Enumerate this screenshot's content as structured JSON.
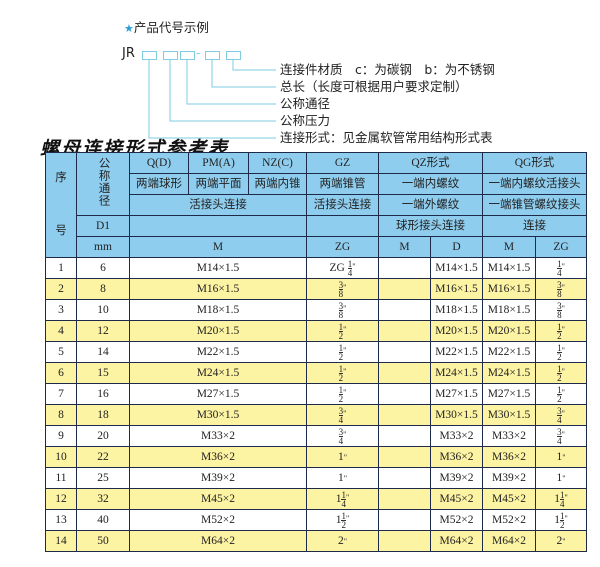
{
  "example": {
    "caption": "产品代号示例",
    "code_prefix": "JR",
    "dash": "-",
    "labels": [
      "连接件材质　c：为碳钢　b：为不锈钢",
      "总长（长度可根据用户要求定制）",
      "公称通径",
      "公称压力",
      "连接形式：见金属软管常用结构形式表"
    ]
  },
  "title": "螺母连接形式参考表",
  "table": {
    "seq_top": "序",
    "seq_bottom": "号",
    "dn_label": "公称通径",
    "row1": [
      "Q(D)",
      "PM(A)",
      "NZ(C)",
      "GZ",
      "QZ形式",
      "QG形式"
    ],
    "row2": [
      "两端球形",
      "两端平面",
      "两端内锥",
      "两端锥管",
      "一端内螺纹",
      "一端内螺纹活接头"
    ],
    "row3": [
      "活接头连接",
      "活接头连接",
      "一端外螺纹",
      "一端锥管螺纹接头"
    ],
    "row4": [
      "D1",
      "",
      "",
      "球形接头连接",
      "连接"
    ],
    "row5": [
      "mm",
      "M",
      "ZG",
      "M",
      "D",
      "M",
      "ZG"
    ],
    "rows": [
      {
        "no": "1",
        "d1": "6",
        "m": "M14×1.5",
        "zg": {
          "pre": "ZG ",
          "whole": "",
          "num": "1",
          "den": "4"
        },
        "qz_m": "",
        "qz_d": "M14×1.5",
        "qg_m": "M14×1.5",
        "qg_zg": {
          "whole": "",
          "num": "1",
          "den": "4"
        }
      },
      {
        "no": "2",
        "d1": "8",
        "m": "M16×1.5",
        "zg": {
          "whole": "",
          "num": "3",
          "den": "8"
        },
        "qz_m": "",
        "qz_d": "M16×1.5",
        "qg_m": "M16×1.5",
        "qg_zg": {
          "whole": "",
          "num": "3",
          "den": "8"
        }
      },
      {
        "no": "3",
        "d1": "10",
        "m": "M18×1.5",
        "zg": {
          "whole": "",
          "num": "3",
          "den": "8"
        },
        "qz_m": "",
        "qz_d": "M18×1.5",
        "qg_m": "M18×1.5",
        "qg_zg": {
          "whole": "",
          "num": "3",
          "den": "8"
        }
      },
      {
        "no": "4",
        "d1": "12",
        "m": "M20×1.5",
        "zg": {
          "whole": "",
          "num": "1",
          "den": "2"
        },
        "qz_m": "",
        "qz_d": "M20×1.5",
        "qg_m": "M20×1.5",
        "qg_zg": {
          "whole": "",
          "num": "1",
          "den": "2"
        }
      },
      {
        "no": "5",
        "d1": "14",
        "m": "M22×1.5",
        "zg": {
          "whole": "",
          "num": "1",
          "den": "2"
        },
        "qz_m": "",
        "qz_d": "M22×1.5",
        "qg_m": "M22×1.5",
        "qg_zg": {
          "whole": "",
          "num": "1",
          "den": "2"
        }
      },
      {
        "no": "6",
        "d1": "15",
        "m": "M24×1.5",
        "zg": {
          "whole": "",
          "num": "1",
          "den": "2"
        },
        "qz_m": "",
        "qz_d": "M24×1.5",
        "qg_m": "M24×1.5",
        "qg_zg": {
          "whole": "",
          "num": "1",
          "den": "2"
        }
      },
      {
        "no": "7",
        "d1": "16",
        "m": "M27×1.5",
        "zg": {
          "whole": "",
          "num": "1",
          "den": "2"
        },
        "qz_m": "",
        "qz_d": "M27×1.5",
        "qg_m": "M27×1.5",
        "qg_zg": {
          "whole": "",
          "num": "1",
          "den": "2"
        }
      },
      {
        "no": "8",
        "d1": "18",
        "m": "M30×1.5",
        "zg": {
          "whole": "",
          "num": "3",
          "den": "4"
        },
        "qz_m": "",
        "qz_d": "M30×1.5",
        "qg_m": "M30×1.5",
        "qg_zg": {
          "whole": "",
          "num": "3",
          "den": "4"
        }
      },
      {
        "no": "9",
        "d1": "20",
        "m": "M33×2",
        "zg": {
          "whole": "",
          "num": "3",
          "den": "4"
        },
        "qz_m": "",
        "qz_d": "M33×2",
        "qg_m": "M33×2",
        "qg_zg": {
          "whole": "",
          "num": "3",
          "den": "4"
        }
      },
      {
        "no": "10",
        "d1": "22",
        "m": "M36×2",
        "zg": {
          "whole": "1",
          "num": "",
          "den": ""
        },
        "qz_m": "",
        "qz_d": "M36×2",
        "qg_m": "M36×2",
        "qg_zg": {
          "whole": "1",
          "num": "",
          "den": ""
        }
      },
      {
        "no": "11",
        "d1": "25",
        "m": "M39×2",
        "zg": {
          "whole": "1",
          "num": "",
          "den": ""
        },
        "qz_m": "",
        "qz_d": "M39×2",
        "qg_m": "M39×2",
        "qg_zg": {
          "whole": "1",
          "num": "",
          "den": ""
        }
      },
      {
        "no": "12",
        "d1": "32",
        "m": "M45×2",
        "zg": {
          "whole": "1",
          "num": "1",
          "den": "4"
        },
        "qz_m": "",
        "qz_d": "M45×2",
        "qg_m": "M45×2",
        "qg_zg": {
          "whole": "1",
          "num": "1",
          "den": "4"
        }
      },
      {
        "no": "13",
        "d1": "40",
        "m": "M52×2",
        "zg": {
          "whole": "1",
          "num": "1",
          "den": "2"
        },
        "qz_m": "",
        "qz_d": "M52×2",
        "qg_m": "M52×2",
        "qg_zg": {
          "whole": "1",
          "num": "1",
          "den": "2"
        }
      },
      {
        "no": "14",
        "d1": "50",
        "m": "M64×2",
        "zg": {
          "whole": "2",
          "num": "",
          "den": ""
        },
        "qz_m": "",
        "qz_d": "M64×2",
        "qg_m": "M64×2",
        "qg_zg": {
          "whole": "2",
          "num": "",
          "den": ""
        }
      }
    ],
    "inch_mark": "\"",
    "colors": {
      "header": "#8fcdef",
      "stripe": "#fcf3a3",
      "border": "#1d2a4a",
      "accent": "#2a9fd6"
    }
  }
}
